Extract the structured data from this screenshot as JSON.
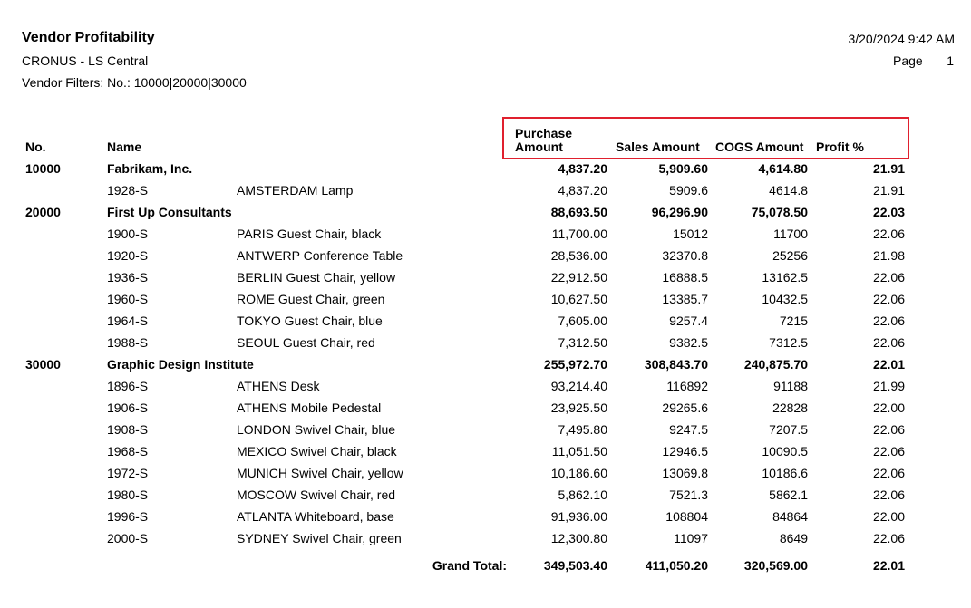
{
  "report": {
    "title": "Vendor Profitability",
    "company": "CRONUS - LS Central",
    "filters": "Vendor Filters: No.: 10000|20000|30000",
    "printed": "3/20/2024 9:42 AM",
    "page_label": "Page",
    "page_number": "1"
  },
  "columns": {
    "no": "No.",
    "name": "Name",
    "purchase_line1": "Purchase",
    "purchase_line2": "Amount",
    "sales": "Sales Amount",
    "cogs": "COGS Amount",
    "profit": "Profit %"
  },
  "highlight_color": "#e0202e",
  "vendors": [
    {
      "no": "10000",
      "name": "Fabrikam, Inc.",
      "purchase": "4,837.20",
      "sales": "5,909.60",
      "cogs": "4,614.80",
      "profit": "21.91",
      "items": [
        {
          "no": "1928-S",
          "desc": "AMSTERDAM Lamp",
          "purchase": "4,837.20",
          "sales": "5909.6",
          "cogs": "4614.8",
          "profit": "21.91"
        }
      ]
    },
    {
      "no": "20000",
      "name": "First Up Consultants",
      "purchase": "88,693.50",
      "sales": "96,296.90",
      "cogs": "75,078.50",
      "profit": "22.03",
      "items": [
        {
          "no": "1900-S",
          "desc": "PARIS Guest Chair, black",
          "purchase": "11,700.00",
          "sales": "15012",
          "cogs": "11700",
          "profit": "22.06"
        },
        {
          "no": "1920-S",
          "desc": "ANTWERP Conference Table",
          "purchase": "28,536.00",
          "sales": "32370.8",
          "cogs": "25256",
          "profit": "21.98"
        },
        {
          "no": "1936-S",
          "desc": "BERLIN Guest Chair, yellow",
          "purchase": "22,912.50",
          "sales": "16888.5",
          "cogs": "13162.5",
          "profit": "22.06"
        },
        {
          "no": "1960-S",
          "desc": "ROME Guest Chair, green",
          "purchase": "10,627.50",
          "sales": "13385.7",
          "cogs": "10432.5",
          "profit": "22.06"
        },
        {
          "no": "1964-S",
          "desc": "TOKYO Guest Chair, blue",
          "purchase": "7,605.00",
          "sales": "9257.4",
          "cogs": "7215",
          "profit": "22.06"
        },
        {
          "no": "1988-S",
          "desc": "SEOUL Guest Chair, red",
          "purchase": "7,312.50",
          "sales": "9382.5",
          "cogs": "7312.5",
          "profit": "22.06"
        }
      ]
    },
    {
      "no": "30000",
      "name": "Graphic Design Institute",
      "purchase": "255,972.70",
      "sales": "308,843.70",
      "cogs": "240,875.70",
      "profit": "22.01",
      "items": [
        {
          "no": "1896-S",
          "desc": "ATHENS Desk",
          "purchase": "93,214.40",
          "sales": "116892",
          "cogs": "91188",
          "profit": "21.99"
        },
        {
          "no": "1906-S",
          "desc": "ATHENS Mobile Pedestal",
          "purchase": "23,925.50",
          "sales": "29265.6",
          "cogs": "22828",
          "profit": "22.00"
        },
        {
          "no": "1908-S",
          "desc": "LONDON Swivel Chair, blue",
          "purchase": "7,495.80",
          "sales": "9247.5",
          "cogs": "7207.5",
          "profit": "22.06"
        },
        {
          "no": "1968-S",
          "desc": "MEXICO Swivel Chair, black",
          "purchase": "11,051.50",
          "sales": "12946.5",
          "cogs": "10090.5",
          "profit": "22.06"
        },
        {
          "no": "1972-S",
          "desc": "MUNICH Swivel Chair, yellow",
          "purchase": "10,186.60",
          "sales": "13069.8",
          "cogs": "10186.6",
          "profit": "22.06"
        },
        {
          "no": "1980-S",
          "desc": "MOSCOW Swivel Chair, red",
          "purchase": "5,862.10",
          "sales": "7521.3",
          "cogs": "5862.1",
          "profit": "22.06"
        },
        {
          "no": "1996-S",
          "desc": "ATLANTA Whiteboard, base",
          "purchase": "91,936.00",
          "sales": "108804",
          "cogs": "84864",
          "profit": "22.00"
        },
        {
          "no": "2000-S",
          "desc": "SYDNEY Swivel Chair, green",
          "purchase": "12,300.80",
          "sales": "11097",
          "cogs": "8649",
          "profit": "22.06"
        }
      ]
    }
  ],
  "grand_total": {
    "label": "Grand Total:",
    "purchase": "349,503.40",
    "sales": "411,050.20",
    "cogs": "320,569.00",
    "profit": "22.01"
  }
}
